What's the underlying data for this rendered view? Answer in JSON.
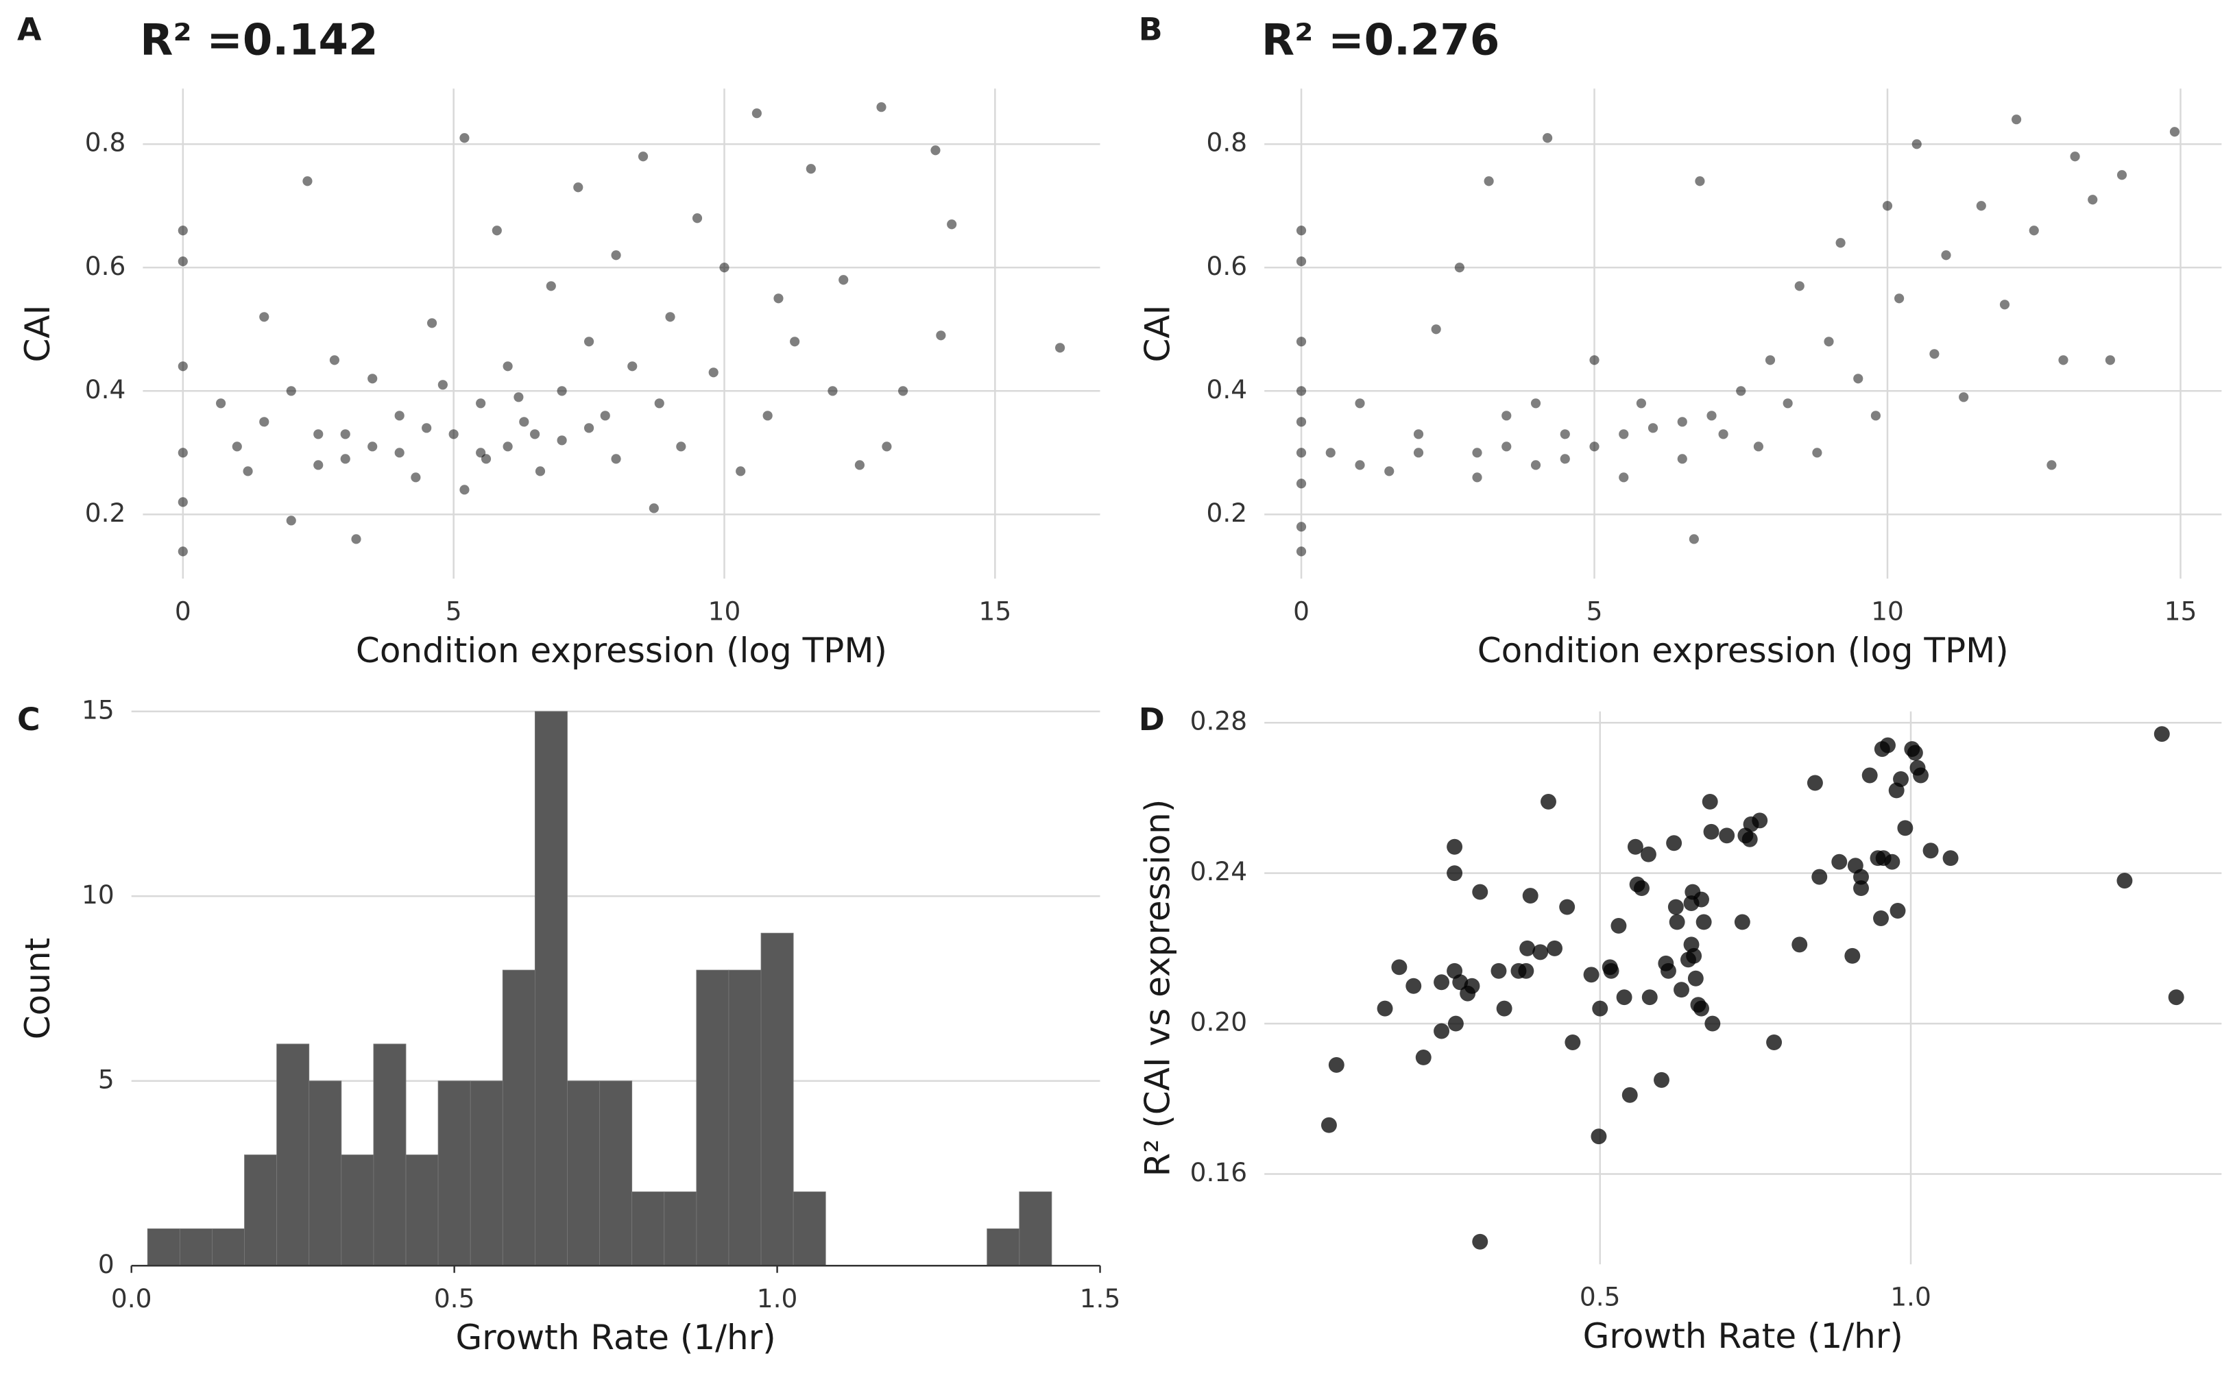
{
  "chart_data": [
    {
      "type": "scatter",
      "panel_label": "A",
      "title": "R² =0.142",
      "xlabel": "Condition expression (log TPM)",
      "ylabel": "CAI",
      "color": "rgba(0,0,0,0.5)",
      "grid": true,
      "xlim": [
        -0.74,
        16.94
      ],
      "ylim": [
        0.096,
        0.89
      ],
      "xticks": [
        0,
        5,
        10,
        15
      ],
      "yticks": [
        0.2,
        0.4,
        0.6,
        0.8
      ],
      "x": [
        0,
        0,
        0,
        0,
        0,
        0,
        0.7,
        1.5,
        2,
        2.3,
        2.5,
        3,
        3.2,
        3.5,
        4,
        4,
        4.3,
        4.6,
        5,
        5.2,
        5.5,
        5.6,
        5.8,
        6,
        6,
        6.3,
        6.6,
        6.8,
        7,
        7,
        7.3,
        7.5,
        7.8,
        8,
        8,
        8.3,
        8.5,
        8.7,
        8.8,
        9,
        9.2,
        9.5,
        9.8,
        10,
        10.3,
        10.6,
        10.8,
        11,
        11.3,
        11.6,
        12,
        12.2,
        12.5,
        12.9,
        13,
        13.3,
        13.9,
        14,
        14.2,
        16.2,
        1,
        1.5,
        2,
        2.5,
        3,
        3.5,
        4.5,
        5.5,
        6.5,
        7.5,
        1.2,
        2.8,
        4.8,
        5.2,
        6.2
      ],
      "values": [
        0.14,
        0.3,
        0.66,
        0.61,
        0.44,
        0.22,
        0.38,
        0.52,
        0.19,
        0.74,
        0.28,
        0.33,
        0.16,
        0.42,
        0.3,
        0.36,
        0.26,
        0.51,
        0.33,
        0.81,
        0.38,
        0.29,
        0.66,
        0.31,
        0.44,
        0.35,
        0.27,
        0.57,
        0.4,
        0.32,
        0.73,
        0.48,
        0.36,
        0.29,
        0.62,
        0.44,
        0.78,
        0.21,
        0.38,
        0.52,
        0.31,
        0.68,
        0.43,
        0.6,
        0.27,
        0.85,
        0.36,
        0.55,
        0.48,
        0.76,
        0.4,
        0.58,
        0.28,
        0.86,
        0.31,
        0.4,
        0.79,
        0.49,
        0.67,
        0.47,
        0.31,
        0.35,
        0.4,
        0.33,
        0.29,
        0.31,
        0.34,
        0.3,
        0.33,
        0.34,
        0.27,
        0.45,
        0.41,
        0.24,
        0.39
      ]
    },
    {
      "type": "scatter",
      "panel_label": "B",
      "title": "R² =0.276",
      "xlabel": "Condition expression (log TPM)",
      "ylabel": "CAI",
      "color": "rgba(0,0,0,0.5)",
      "grid": true,
      "xlim": [
        -0.63,
        15.7
      ],
      "ylim": [
        0.096,
        0.89
      ],
      "xticks": [
        0,
        5,
        10,
        15
      ],
      "yticks": [
        0.2,
        0.4,
        0.6,
        0.8
      ],
      "x": [
        0,
        0,
        0,
        0,
        0,
        0,
        0,
        0,
        0,
        0.5,
        1,
        1.5,
        2,
        2.3,
        2.7,
        3,
        3.2,
        3.5,
        4,
        4.2,
        4.5,
        5,
        5,
        5.5,
        5.8,
        6,
        6.5,
        6.7,
        6.8,
        7,
        7.5,
        7.8,
        8,
        8.3,
        8.5,
        8.8,
        9,
        9.2,
        9.5,
        9.8,
        10,
        10.2,
        10.5,
        10.8,
        11,
        11.3,
        11.6,
        12,
        12.2,
        12.5,
        12.8,
        13,
        13.2,
        13.5,
        13.8,
        14,
        14.9,
        1,
        2,
        3.5,
        4.5,
        5.5,
        6.5,
        7.2,
        3,
        4
      ],
      "values": [
        0.14,
        0.18,
        0.25,
        0.3,
        0.35,
        0.4,
        0.48,
        0.66,
        0.61,
        0.3,
        0.38,
        0.27,
        0.33,
        0.5,
        0.6,
        0.3,
        0.74,
        0.36,
        0.28,
        0.81,
        0.33,
        0.31,
        0.45,
        0.26,
        0.38,
        0.34,
        0.29,
        0.16,
        0.74,
        0.36,
        0.4,
        0.31,
        0.45,
        0.38,
        0.57,
        0.3,
        0.48,
        0.64,
        0.42,
        0.36,
        0.7,
        0.55,
        0.8,
        0.46,
        0.62,
        0.39,
        0.7,
        0.54,
        0.84,
        0.66,
        0.28,
        0.45,
        0.78,
        0.71,
        0.45,
        0.75,
        0.82,
        0.28,
        0.3,
        0.31,
        0.29,
        0.33,
        0.35,
        0.33,
        0.26,
        0.38
      ]
    },
    {
      "type": "histogram",
      "panel_label": "C",
      "xlabel": "Growth Rate (1/hr)",
      "ylabel": "Count",
      "color": "#595959",
      "grid": true,
      "xlim": [
        0,
        1.5
      ],
      "ylim": [
        0,
        15
      ],
      "xticks": [
        {
          "value": 0,
          "label": "0.0"
        },
        0.5,
        {
          "value": 1,
          "label": "1.0"
        },
        1.5
      ],
      "yticks": [
        0,
        5,
        10,
        15
      ],
      "bins": [
        0.025,
        0.075,
        0.125,
        0.175,
        0.225,
        0.275,
        0.325,
        0.375,
        0.425,
        0.475,
        0.525,
        0.575,
        0.625,
        0.675,
        0.725,
        0.775,
        0.825,
        0.875,
        0.925,
        0.975,
        1.025,
        1.075,
        1.125,
        1.175,
        1.225,
        1.275,
        1.325,
        1.375,
        1.425
      ],
      "values": [
        1,
        1,
        1,
        3,
        6,
        5,
        3,
        6,
        3,
        5,
        5,
        8,
        15,
        5,
        5,
        2,
        2,
        8,
        8,
        9,
        2,
        0,
        0,
        0,
        0,
        0,
        1,
        2
      ]
    },
    {
      "type": "scatter",
      "panel_label": "D",
      "xlabel": "Growth Rate (1/hr)",
      "ylabel": "R² (CAI vs expression)",
      "color": "rgba(0,0,0,0.75)",
      "grid": true,
      "xlim": [
        -0.04,
        1.5
      ],
      "ylim": [
        0.136,
        0.283
      ],
      "xticks": [
        0.5,
        {
          "value": 1,
          "label": "1.0"
        }
      ],
      "yticks": [
        0.16,
        {
          "value": 0.2,
          "label": "0.20"
        },
        0.24,
        0.28
      ],
      "x": [
        0.064,
        0.076,
        0.154,
        0.177,
        0.2,
        0.216,
        0.245,
        0.245,
        0.266,
        0.266,
        0.266,
        0.268,
        0.275,
        0.287,
        0.294,
        0.307,
        0.307,
        0.337,
        0.346,
        0.369,
        0.381,
        0.383,
        0.388,
        0.404,
        0.417,
        0.427,
        0.447,
        0.456,
        0.486,
        0.498,
        0.5,
        0.516,
        0.518,
        0.53,
        0.539,
        0.548,
        0.557,
        0.56,
        0.567,
        0.578,
        0.58,
        0.599,
        0.606,
        0.61,
        0.619,
        0.622,
        0.624,
        0.631,
        0.642,
        0.647,
        0.647,
        0.649,
        0.651,
        0.654,
        0.658,
        0.663,
        0.663,
        0.667,
        0.677,
        0.679,
        0.681,
        0.704,
        0.729,
        0.734,
        0.741,
        0.743,
        0.757,
        0.78,
        0.821,
        0.846,
        0.853,
        0.885,
        0.906,
        0.911,
        0.92,
        0.92,
        0.934,
        0.947,
        0.952,
        0.954,
        0.956,
        0.963,
        0.97,
        0.977,
        0.979,
        0.984,
        0.991,
        1.002,
        1.007,
        1.011,
        1.016,
        1.032,
        1.064,
        1.344,
        1.404,
        1.427
      ],
      "values": [
        0.173,
        0.189,
        0.204,
        0.215,
        0.21,
        0.191,
        0.211,
        0.198,
        0.247,
        0.24,
        0.214,
        0.2,
        0.211,
        0.208,
        0.21,
        0.235,
        0.142,
        0.214,
        0.204,
        0.214,
        0.214,
        0.22,
        0.234,
        0.219,
        0.259,
        0.22,
        0.231,
        0.195,
        0.213,
        0.17,
        0.204,
        0.215,
        0.214,
        0.226,
        0.207,
        0.181,
        0.247,
        0.237,
        0.236,
        0.245,
        0.207,
        0.185,
        0.216,
        0.214,
        0.248,
        0.231,
        0.227,
        0.209,
        0.217,
        0.232,
        0.221,
        0.235,
        0.218,
        0.212,
        0.205,
        0.204,
        0.233,
        0.227,
        0.259,
        0.251,
        0.2,
        0.25,
        0.227,
        0.25,
        0.249,
        0.253,
        0.254,
        0.195,
        0.221,
        0.264,
        0.239,
        0.243,
        0.218,
        0.242,
        0.239,
        0.236,
        0.266,
        0.244,
        0.228,
        0.273,
        0.244,
        0.274,
        0.243,
        0.262,
        0.23,
        0.265,
        0.252,
        0.273,
        0.272,
        0.268,
        0.266,
        0.246,
        0.244,
        0.238,
        0.277,
        0.207
      ]
    }
  ]
}
